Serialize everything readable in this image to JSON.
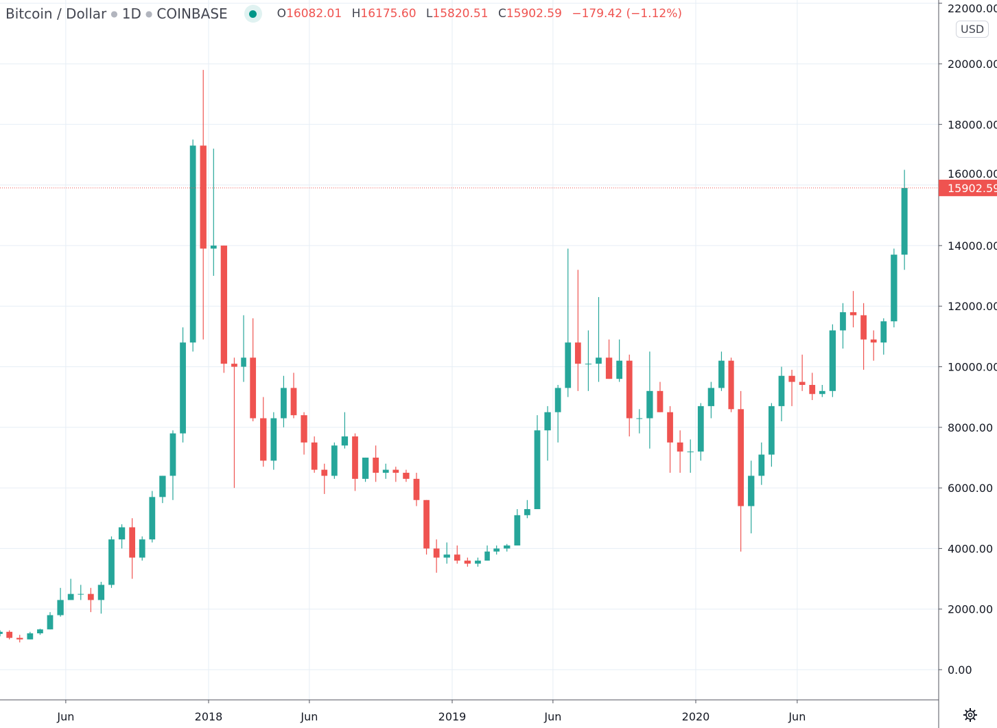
{
  "header": {
    "symbol": "Bitcoin / Dollar",
    "interval": "1D",
    "exchange": "COINBASE",
    "open_label": "O",
    "open": "16082.01",
    "high_label": "H",
    "high": "16175.60",
    "low_label": "L",
    "low": "15820.51",
    "close_label": "C",
    "close": "15902.59",
    "change": "−179.42 (−1.12%)",
    "currency": "USD"
  },
  "colors": {
    "up": "#26a69a",
    "down": "#ef5350",
    "grid": "#e6eef5",
    "text": "#434651",
    "status": "#009688"
  },
  "icons": {
    "settings": "gear-icon",
    "market_status": "market-open-dot-icon"
  },
  "chart_data": {
    "type": "candlestick",
    "title": "Bitcoin / Dollar · 1D · COINBASE",
    "ylim": [
      0,
      22000
    ],
    "yticks": [
      "0.00",
      "2000.00",
      "4000.00",
      "6000.00",
      "8000.00",
      "10000.00",
      "12000.00",
      "14000.00",
      "16000.00",
      "18000.00",
      "20000.00",
      "22000.00"
    ],
    "xticks": [
      {
        "label": "Jun",
        "date": "2017-06-01"
      },
      {
        "label": "2018",
        "date": "2018-01-01"
      },
      {
        "label": "Jun",
        "date": "2018-06-01"
      },
      {
        "label": "2019",
        "date": "2019-01-01"
      },
      {
        "label": "Jun",
        "date": "2019-06-01"
      },
      {
        "label": "2020",
        "date": "2020-01-01"
      },
      {
        "label": "Jun",
        "date": "2020-06-01"
      }
    ],
    "last_price": 15902.59,
    "last_price_label": "15902.59",
    "grid": true,
    "candles_ohlc_semimonthly": [
      [
        "2017-02-16",
        1180,
        1300,
        1100,
        1250
      ],
      [
        "2017-03-01",
        1250,
        1300,
        1000,
        1050
      ],
      [
        "2017-03-16",
        1050,
        1150,
        900,
        1000
      ],
      [
        "2017-04-01",
        1000,
        1250,
        1000,
        1200
      ],
      [
        "2017-04-16",
        1200,
        1350,
        1150,
        1330
      ],
      [
        "2017-05-01",
        1330,
        1900,
        1330,
        1800
      ],
      [
        "2017-05-16",
        1800,
        2700,
        1750,
        2300
      ],
      [
        "2017-06-01",
        2300,
        3000,
        2300,
        2500
      ],
      [
        "2017-06-16",
        2500,
        2800,
        2300,
        2500
      ],
      [
        "2017-07-01",
        2500,
        2700,
        1900,
        2300
      ],
      [
        "2017-07-16",
        2300,
        2900,
        1850,
        2800
      ],
      [
        "2017-08-01",
        2800,
        4400,
        2700,
        4300
      ],
      [
        "2017-08-16",
        4300,
        4800,
        4000,
        4700
      ],
      [
        "2017-09-01",
        4700,
        5000,
        3000,
        3700
      ],
      [
        "2017-09-16",
        3700,
        4400,
        3600,
        4300
      ],
      [
        "2017-10-01",
        4300,
        5900,
        4200,
        5700
      ],
      [
        "2017-10-16",
        5700,
        6400,
        5500,
        6400
      ],
      [
        "2017-11-01",
        6400,
        7900,
        5600,
        7800
      ],
      [
        "2017-11-16",
        7800,
        11300,
        7500,
        10800
      ],
      [
        "2017-12-01",
        10800,
        17500,
        10500,
        17300
      ],
      [
        "2017-12-16",
        17300,
        19800,
        10900,
        13900
      ],
      [
        "2018-01-01",
        13900,
        17200,
        13000,
        14000
      ],
      [
        "2018-01-16",
        14000,
        14000,
        9800,
        10100
      ],
      [
        "2018-02-01",
        10100,
        10300,
        6000,
        10000
      ],
      [
        "2018-02-16",
        10000,
        11700,
        9500,
        10300
      ],
      [
        "2018-03-01",
        10300,
        11600,
        8200,
        8300
      ],
      [
        "2018-03-16",
        8300,
        9000,
        6700,
        6900
      ],
      [
        "2018-04-01",
        6900,
        8500,
        6600,
        8300
      ],
      [
        "2018-04-16",
        8300,
        9700,
        8000,
        9300
      ],
      [
        "2018-05-01",
        9300,
        9800,
        8300,
        8400
      ],
      [
        "2018-05-16",
        8400,
        8500,
        7100,
        7500
      ],
      [
        "2018-06-01",
        7500,
        7700,
        6500,
        6600
      ],
      [
        "2018-06-16",
        6600,
        6800,
        5800,
        6400
      ],
      [
        "2018-07-01",
        6400,
        7500,
        6300,
        7400
      ],
      [
        "2018-07-16",
        7400,
        8500,
        7300,
        7700
      ],
      [
        "2018-08-01",
        7700,
        7800,
        5900,
        6300
      ],
      [
        "2018-08-16",
        6300,
        7000,
        6200,
        7000
      ],
      [
        "2018-09-01",
        7000,
        7400,
        6200,
        6500
      ],
      [
        "2018-09-16",
        6500,
        6800,
        6300,
        6600
      ],
      [
        "2018-10-01",
        6600,
        6700,
        6200,
        6500
      ],
      [
        "2018-10-16",
        6500,
        6600,
        6200,
        6300
      ],
      [
        "2018-11-01",
        6300,
        6500,
        5400,
        5600
      ],
      [
        "2018-11-16",
        5600,
        5600,
        3800,
        4000
      ],
      [
        "2018-12-01",
        4000,
        4300,
        3200,
        3700
      ],
      [
        "2018-12-16",
        3700,
        4200,
        3500,
        3800
      ],
      [
        "2019-01-01",
        3800,
        4100,
        3500,
        3600
      ],
      [
        "2019-01-16",
        3600,
        3700,
        3400,
        3500
      ],
      [
        "2019-02-01",
        3500,
        3700,
        3400,
        3600
      ],
      [
        "2019-02-16",
        3600,
        4100,
        3600,
        3900
      ],
      [
        "2019-03-01",
        3900,
        4100,
        3800,
        4000
      ],
      [
        "2019-03-16",
        4000,
        4150,
        3900,
        4100
      ],
      [
        "2019-04-01",
        4100,
        5300,
        4100,
        5100
      ],
      [
        "2019-04-16",
        5100,
        5600,
        5000,
        5300
      ],
      [
        "2019-05-01",
        5300,
        8400,
        5300,
        7900
      ],
      [
        "2019-05-16",
        7900,
        8700,
        6900,
        8500
      ],
      [
        "2019-06-01",
        8500,
        9400,
        7500,
        9300
      ],
      [
        "2019-06-16",
        9300,
        13900,
        9000,
        10800
      ],
      [
        "2019-07-01",
        10800,
        13200,
        9200,
        10100
      ],
      [
        "2019-07-16",
        10100,
        11200,
        9200,
        10100
      ],
      [
        "2019-08-01",
        10100,
        12300,
        9500,
        10300
      ],
      [
        "2019-08-16",
        10300,
        10900,
        9600,
        9600
      ],
      [
        "2019-09-01",
        9600,
        10900,
        9500,
        10200
      ],
      [
        "2019-09-16",
        10200,
        10400,
        7700,
        8300
      ],
      [
        "2019-10-01",
        8300,
        8600,
        7800,
        8300
      ],
      [
        "2019-10-16",
        8300,
        10500,
        7300,
        9200
      ],
      [
        "2019-11-01",
        9200,
        9500,
        8500,
        8500
      ],
      [
        "2019-11-16",
        8500,
        8700,
        6500,
        7500
      ],
      [
        "2019-12-01",
        7500,
        7900,
        6500,
        7200
      ],
      [
        "2019-12-16",
        7200,
        7600,
        6500,
        7200
      ],
      [
        "2020-01-01",
        7200,
        8800,
        6900,
        8700
      ],
      [
        "2020-01-16",
        8700,
        9500,
        8300,
        9300
      ],
      [
        "2020-02-01",
        9300,
        10500,
        9200,
        10200
      ],
      [
        "2020-02-16",
        10200,
        10300,
        8500,
        8600
      ],
      [
        "2020-03-01",
        8600,
        9200,
        3900,
        5400
      ],
      [
        "2020-03-16",
        5400,
        6900,
        4500,
        6400
      ],
      [
        "2020-04-01",
        6400,
        7500,
        6100,
        7100
      ],
      [
        "2020-04-16",
        7100,
        8800,
        6700,
        8700
      ],
      [
        "2020-05-01",
        8700,
        10000,
        8200,
        9700
      ],
      [
        "2020-05-16",
        9700,
        9900,
        8700,
        9500
      ],
      [
        "2020-06-01",
        9500,
        10400,
        9200,
        9400
      ],
      [
        "2020-06-16",
        9400,
        9800,
        8900,
        9100
      ],
      [
        "2020-07-01",
        9100,
        9400,
        9000,
        9200
      ],
      [
        "2020-07-16",
        9200,
        11400,
        9000,
        11200
      ],
      [
        "2020-08-01",
        11200,
        12100,
        10600,
        11800
      ],
      [
        "2020-08-16",
        11800,
        12500,
        11300,
        11700
      ],
      [
        "2020-09-01",
        11700,
        12100,
        9900,
        10900
      ],
      [
        "2020-09-16",
        10900,
        11200,
        10200,
        10800
      ],
      [
        "2020-10-01",
        10800,
        11600,
        10400,
        11500
      ],
      [
        "2020-10-16",
        11500,
        13900,
        11300,
        13700
      ],
      [
        "2020-11-01",
        13700,
        16500,
        13200,
        15900
      ]
    ]
  }
}
